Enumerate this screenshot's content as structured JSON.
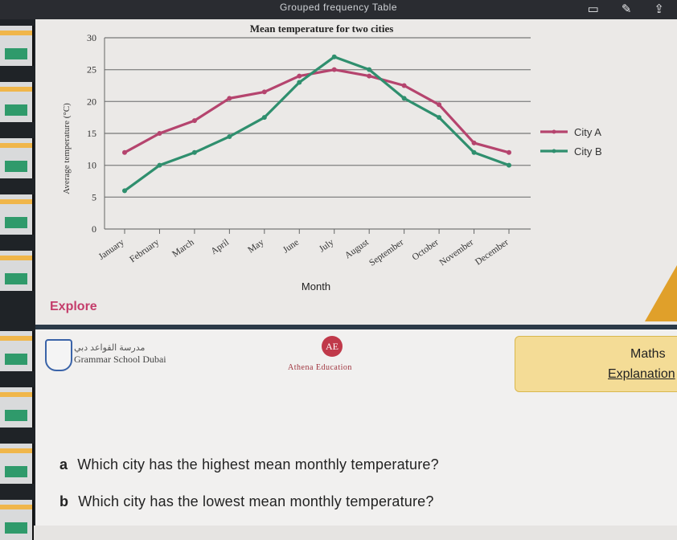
{
  "window": {
    "title": "Grouped frequency Table"
  },
  "toolbar_icons": [
    "screen-icon",
    "pen-icon",
    "share-icon"
  ],
  "slide": {
    "explore_label": "Explore"
  },
  "chart_data": {
    "type": "line",
    "title": "Mean temperature for two cities",
    "xlabel": "Month",
    "ylabel": "Average temperature (°C)",
    "ylim": [
      0,
      30
    ],
    "yticks": [
      0,
      5,
      10,
      15,
      20,
      25,
      30
    ],
    "grid": true,
    "legend_position": "right",
    "categories": [
      "January",
      "February",
      "March",
      "April",
      "May",
      "June",
      "July",
      "August",
      "September",
      "October",
      "November",
      "December"
    ],
    "series": [
      {
        "name": "City A",
        "color": "#b5446e",
        "values": [
          12,
          15,
          17,
          20.5,
          21.5,
          24,
          25,
          24,
          22.5,
          19.5,
          13.5,
          12
        ]
      },
      {
        "name": "City B",
        "color": "#2f8f6e",
        "values": [
          6,
          10,
          12,
          14.5,
          17.5,
          23,
          27,
          25,
          20.5,
          17.5,
          12,
          10
        ]
      }
    ]
  },
  "footer": {
    "school_arabic": "مدرسة القواعد دبي",
    "school_name": "Grammar School Dubai",
    "logo_letters": "AE",
    "athena": "Athena Education",
    "subject": "Maths",
    "section": "Explanation"
  },
  "questions": [
    {
      "label": "a",
      "text": "Which city has the highest mean monthly temperature?"
    },
    {
      "label": "b",
      "text": "Which city has the lowest mean monthly temperature?"
    }
  ]
}
